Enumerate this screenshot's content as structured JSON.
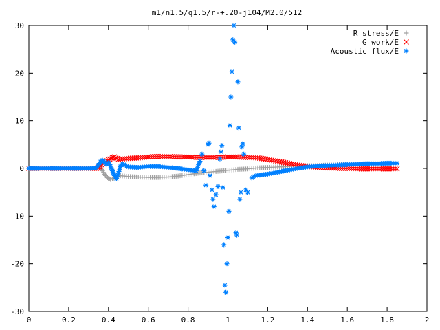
{
  "chart_data": {
    "type": "scatter",
    "title": "m1/n1.5/q1.5/r-+.20-j104/M2.0/512",
    "xlabel": "",
    "ylabel": "",
    "xlim": [
      0,
      2
    ],
    "ylim": [
      -30,
      30
    ],
    "x_ticks": [
      "0",
      "0.2",
      "0.4",
      "0.6",
      "0.8",
      "1",
      "1.2",
      "1.4",
      "1.6",
      "1.8",
      "2"
    ],
    "y_ticks": [
      "30",
      "20",
      "10",
      "0",
      "-10",
      "-20",
      "-30"
    ],
    "grid": false,
    "legend": "top-right",
    "series": [
      {
        "name": "R stress/E",
        "marker": "plus",
        "color": "#a0a0a0",
        "points": [
          [
            0.0,
            0.0
          ],
          [
            0.05,
            0.0
          ],
          [
            0.1,
            0.0
          ],
          [
            0.15,
            0.0
          ],
          [
            0.2,
            0.0
          ],
          [
            0.25,
            0.0
          ],
          [
            0.3,
            0.0
          ],
          [
            0.34,
            0.0
          ],
          [
            0.36,
            0.3
          ],
          [
            0.37,
            -0.5
          ],
          [
            0.38,
            -1.2
          ],
          [
            0.39,
            -1.8
          ],
          [
            0.4,
            -2.1
          ],
          [
            0.41,
            -2.3
          ],
          [
            0.42,
            -2.2
          ],
          [
            0.43,
            -1.9
          ],
          [
            0.45,
            -1.5
          ],
          [
            0.48,
            -1.6
          ],
          [
            0.5,
            -1.7
          ],
          [
            0.55,
            -1.8
          ],
          [
            0.6,
            -1.9
          ],
          [
            0.65,
            -1.9
          ],
          [
            0.7,
            -1.8
          ],
          [
            0.75,
            -1.6
          ],
          [
            0.8,
            -1.3
          ],
          [
            0.85,
            -1.0
          ],
          [
            0.9,
            -0.8
          ],
          [
            0.95,
            -0.6
          ],
          [
            1.0,
            -0.4
          ],
          [
            1.05,
            -0.2
          ],
          [
            1.1,
            -0.1
          ],
          [
            1.15,
            0.1
          ],
          [
            1.2,
            0.2
          ],
          [
            1.25,
            0.3
          ],
          [
            1.3,
            0.4
          ],
          [
            1.35,
            0.5
          ],
          [
            1.4,
            0.6
          ],
          [
            1.45,
            0.6
          ],
          [
            1.5,
            0.7
          ],
          [
            1.55,
            0.8
          ],
          [
            1.6,
            0.8
          ],
          [
            1.65,
            0.9
          ],
          [
            1.7,
            0.9
          ],
          [
            1.75,
            1.0
          ],
          [
            1.8,
            1.0
          ],
          [
            1.85,
            1.0
          ]
        ]
      },
      {
        "name": "G work/E",
        "marker": "cross",
        "color": "#ff0000",
        "points": [
          [
            0.0,
            0.0
          ],
          [
            0.05,
            0.0
          ],
          [
            0.1,
            0.0
          ],
          [
            0.15,
            0.0
          ],
          [
            0.2,
            0.0
          ],
          [
            0.25,
            0.0
          ],
          [
            0.3,
            0.0
          ],
          [
            0.34,
            0.0
          ],
          [
            0.36,
            0.5
          ],
          [
            0.38,
            1.2
          ],
          [
            0.4,
            1.8
          ],
          [
            0.42,
            2.2
          ],
          [
            0.43,
            2.4
          ],
          [
            0.45,
            1.9
          ],
          [
            0.5,
            2.1
          ],
          [
            0.55,
            2.2
          ],
          [
            0.6,
            2.4
          ],
          [
            0.65,
            2.5
          ],
          [
            0.7,
            2.5
          ],
          [
            0.75,
            2.4
          ],
          [
            0.8,
            2.4
          ],
          [
            0.85,
            2.3
          ],
          [
            0.9,
            2.3
          ],
          [
            0.95,
            2.3
          ],
          [
            1.0,
            2.4
          ],
          [
            1.05,
            2.4
          ],
          [
            1.1,
            2.3
          ],
          [
            1.15,
            2.2
          ],
          [
            1.2,
            1.9
          ],
          [
            1.25,
            1.5
          ],
          [
            1.3,
            1.1
          ],
          [
            1.35,
            0.7
          ],
          [
            1.4,
            0.4
          ],
          [
            1.45,
            0.2
          ],
          [
            1.5,
            0.1
          ],
          [
            1.55,
            0.0
          ],
          [
            1.6,
            0.0
          ],
          [
            1.65,
            -0.1
          ],
          [
            1.7,
            -0.1
          ],
          [
            1.75,
            -0.1
          ],
          [
            1.8,
            -0.1
          ],
          [
            1.85,
            -0.1
          ]
        ]
      },
      {
        "name": "Acoustic flux/E",
        "marker": "star",
        "color": "#0080ff",
        "points": [
          [
            0.0,
            0.0
          ],
          [
            0.05,
            0.0
          ],
          [
            0.1,
            0.0
          ],
          [
            0.15,
            0.0
          ],
          [
            0.2,
            0.0
          ],
          [
            0.25,
            0.0
          ],
          [
            0.3,
            0.0
          ],
          [
            0.34,
            0.1
          ],
          [
            0.36,
            1.4
          ],
          [
            0.37,
            1.7
          ],
          [
            0.38,
            1.3
          ],
          [
            0.39,
            0.9
          ],
          [
            0.4,
            1.2
          ],
          [
            0.41,
            0.5
          ],
          [
            0.42,
            -0.5
          ],
          [
            0.43,
            -1.5
          ],
          [
            0.44,
            -2.2
          ],
          [
            0.45,
            -1.0
          ],
          [
            0.46,
            0.4
          ],
          [
            0.47,
            1.0
          ],
          [
            0.5,
            0.3
          ],
          [
            0.55,
            0.2
          ],
          [
            0.6,
            0.4
          ],
          [
            0.65,
            0.4
          ],
          [
            0.7,
            0.2
          ],
          [
            0.75,
            0.0
          ],
          [
            0.8,
            -0.3
          ],
          [
            0.84,
            -0.5
          ],
          [
            0.86,
            1.5
          ],
          [
            0.87,
            3.0
          ],
          [
            0.88,
            -0.5
          ],
          [
            0.89,
            -3.5
          ],
          [
            0.9,
            5.0
          ],
          [
            0.905,
            5.3
          ],
          [
            0.91,
            -1.5
          ],
          [
            0.92,
            -4.5
          ],
          [
            0.925,
            -6.5
          ],
          [
            0.93,
            -8.0
          ],
          [
            0.94,
            -5.5
          ],
          [
            0.95,
            -3.8
          ],
          [
            0.96,
            2.0
          ],
          [
            0.965,
            3.5
          ],
          [
            0.97,
            4.8
          ],
          [
            0.975,
            -4.0
          ],
          [
            0.98,
            -16.0
          ],
          [
            0.985,
            -24.5
          ],
          [
            0.99,
            -26.0
          ],
          [
            0.995,
            -20.0
          ],
          [
            1.0,
            -14.5
          ],
          [
            1.005,
            -9.0
          ],
          [
            1.01,
            9.0
          ],
          [
            1.015,
            15.0
          ],
          [
            1.02,
            20.3
          ],
          [
            1.025,
            27.0
          ],
          [
            1.03,
            30.0
          ],
          [
            1.035,
            26.5
          ],
          [
            1.04,
            -13.5
          ],
          [
            1.045,
            -14.0
          ],
          [
            1.05,
            18.2
          ],
          [
            1.055,
            8.5
          ],
          [
            1.06,
            -6.5
          ],
          [
            1.065,
            -5.0
          ],
          [
            1.07,
            4.5
          ],
          [
            1.075,
            5.2
          ],
          [
            1.08,
            3.0
          ],
          [
            1.09,
            -4.5
          ],
          [
            1.1,
            -5.0
          ],
          [
            1.12,
            -2.0
          ],
          [
            1.14,
            -1.5
          ],
          [
            1.16,
            -1.4
          ],
          [
            1.2,
            -1.2
          ],
          [
            1.25,
            -0.8
          ],
          [
            1.3,
            -0.4
          ],
          [
            1.35,
            0.0
          ],
          [
            1.4,
            0.3
          ],
          [
            1.45,
            0.5
          ],
          [
            1.5,
            0.6
          ],
          [
            1.55,
            0.7
          ],
          [
            1.6,
            0.8
          ],
          [
            1.65,
            0.9
          ],
          [
            1.7,
            1.0
          ],
          [
            1.75,
            1.0
          ],
          [
            1.8,
            1.1
          ],
          [
            1.85,
            1.1
          ]
        ]
      }
    ]
  }
}
